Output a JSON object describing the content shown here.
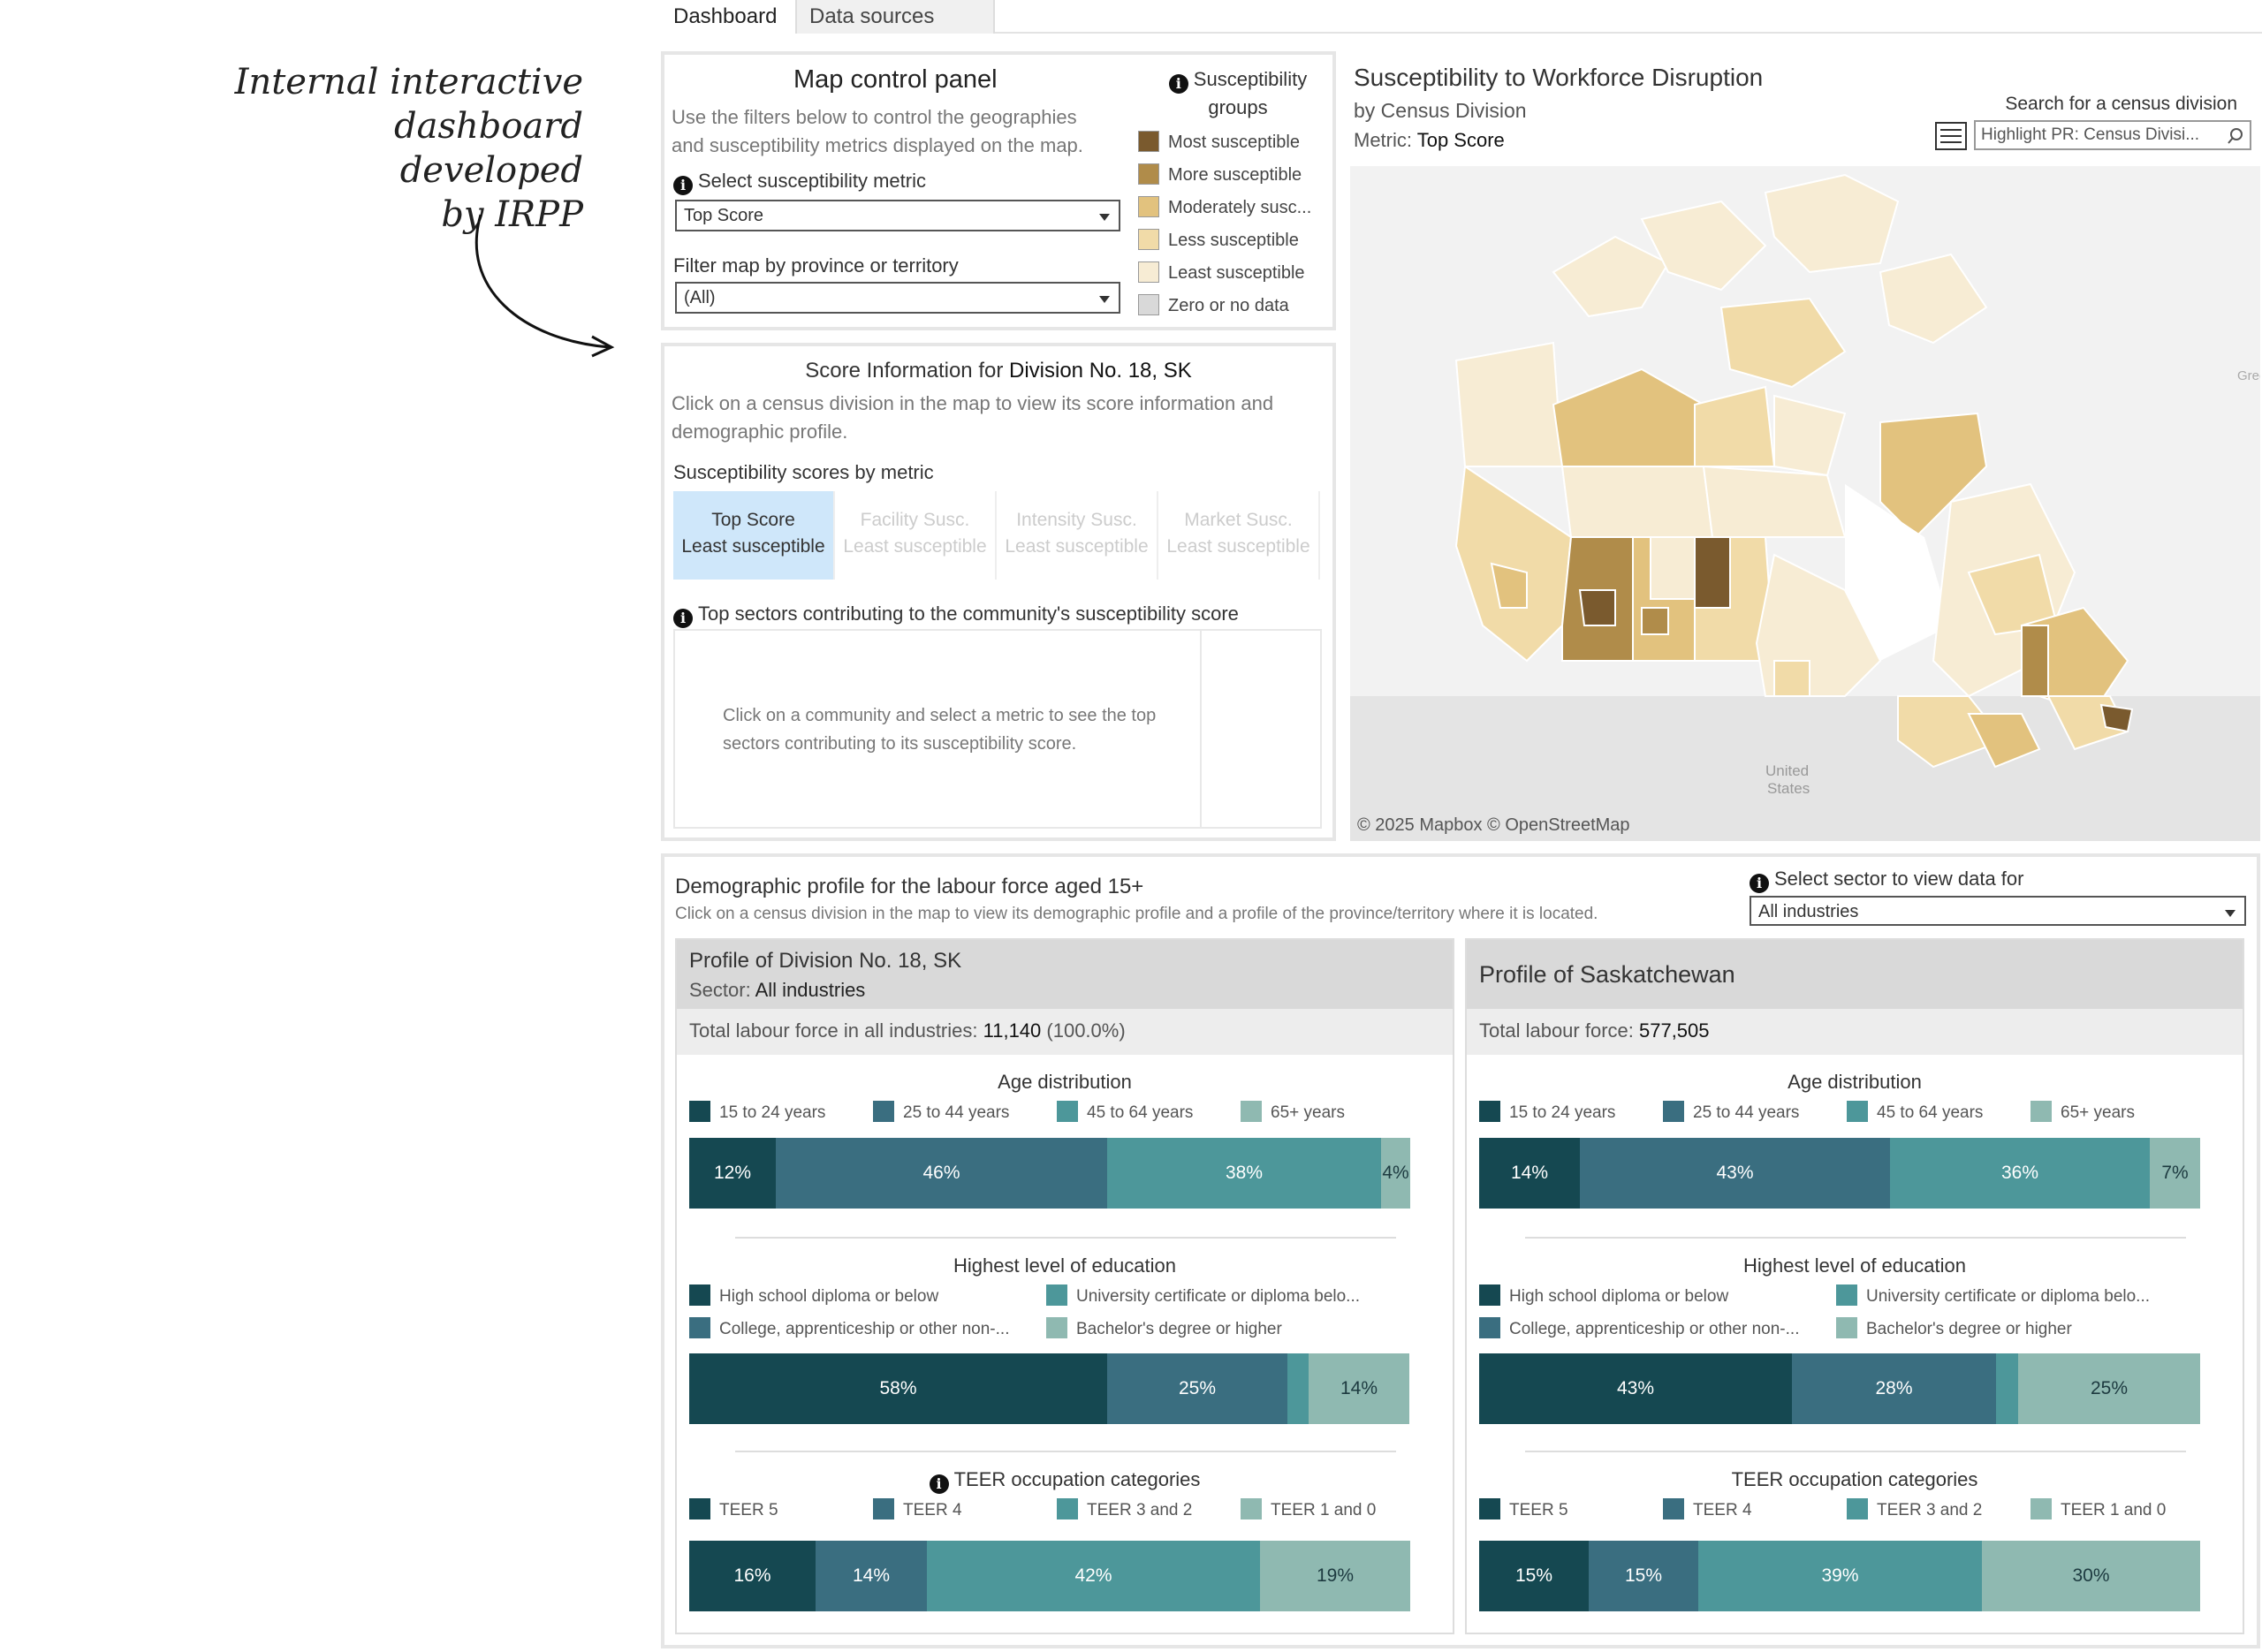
{
  "annotation": {
    "line1": "Internal interactive",
    "line2": "dashboard developed",
    "line3": "by IRPP"
  },
  "tabs": [
    {
      "label": "Dashboard",
      "active": true
    },
    {
      "label": "Data sources",
      "active": false
    }
  ],
  "control": {
    "title": "Map control panel",
    "desc1": "Use the filters below to control the geographies",
    "desc2": "and susceptibility metrics displayed on the map.",
    "metric_label": "Select susceptibility metric",
    "metric_value": "Top Score",
    "filter_label": "Filter map by province or territory",
    "filter_value": "(All)",
    "legend_title1": "Susceptibility",
    "legend_title2": "groups",
    "legend": [
      {
        "label": "Most susceptible",
        "color": "#7a5a2e"
      },
      {
        "label": "More susceptible",
        "color": "#b08c4a"
      },
      {
        "label": "Moderately susc...",
        "color": "#e2c27e"
      },
      {
        "label": "Less susceptible",
        "color": "#f1dba8"
      },
      {
        "label": "Least susceptible",
        "color": "#f7ecd4"
      },
      {
        "label": "Zero or no data",
        "color": "#d9d9d9"
      }
    ]
  },
  "score": {
    "title_prefix": "Score Information for ",
    "title_division": "Division No. 18, SK",
    "desc1": "Click on a census division in the map to view its score information and",
    "desc2": "demographic profile.",
    "scores_label": "Susceptibility scores by metric",
    "metrics": [
      {
        "name": "Top Score",
        "value": "Least susceptible"
      },
      {
        "name": "Facility Susc.",
        "value": "Least susceptible"
      },
      {
        "name": "Intensity Susc.",
        "value": "Least susceptible"
      },
      {
        "name": "Market Susc.",
        "value": "Least susceptible"
      }
    ],
    "sectors_label": "Top sectors contributing to the community's susceptibility score",
    "sectors_hint1": "Click on a community and select a metric to see the top",
    "sectors_hint2": "sectors contributing to its susceptibility score."
  },
  "map": {
    "title": "Susceptibility to Workforce Disruption",
    "subtitle": "by Census Division",
    "metric_prefix": "Metric: ",
    "metric_value": "Top Score",
    "search_label": "Search for a census division",
    "search_placeholder": "Highlight PR: Census Divisi...",
    "attribution": "© 2025 Mapbox  © OpenStreetMap",
    "label_us1": "United",
    "label_us2": "States",
    "label_greenland": "Gree"
  },
  "demo": {
    "title": "Demographic profile for the labour force aged 15+",
    "desc": "Click on a census division in the map to view its demographic profile and a profile of the province/territory where it is located.",
    "sector_label": "Select sector to view data for",
    "sector_value": "All industries",
    "colors": [
      "#154851",
      "#3a6e80",
      "#4d979a",
      "#8fb9b1"
    ],
    "left": {
      "title": "Profile of Division No. 18, SK",
      "sector_prefix": "Sector: ",
      "sector_value": "All industries",
      "total_prefix": "Total labour force in all industries: ",
      "total_value": "11,140",
      "total_suffix": " (100.0%)"
    },
    "right": {
      "title": "Profile of Saskatchewan",
      "total_prefix": "Total labour force: ",
      "total_value": "577,505"
    },
    "age": {
      "title": "Age distribution",
      "legend": [
        "15 to 24 years",
        "25 to 44 years",
        "45 to 64 years",
        "65+ years"
      ]
    },
    "edu": {
      "title": "Highest level of education",
      "legend": [
        "High school diploma or below",
        "College, apprenticeship or other non-...",
        "University certificate or diploma belo...",
        "Bachelor's degree or higher"
      ]
    },
    "teer": {
      "title": "TEER occupation categories",
      "legend": [
        "TEER 5",
        "TEER 4",
        "TEER 3 and 2",
        "TEER 1 and 0"
      ]
    }
  },
  "chart_data": [
    {
      "type": "bar",
      "title": "Age distribution — Division No. 18, SK",
      "categories": [
        "15 to 24 years",
        "25 to 44 years",
        "45 to 64 years",
        "65+ years"
      ],
      "values": [
        12,
        46,
        38,
        4
      ],
      "labels": [
        "12%",
        "46%",
        "38%",
        "4%"
      ]
    },
    {
      "type": "bar",
      "title": "Highest level of education — Division No. 18, SK",
      "categories": [
        "High school diploma or below",
        "College, apprenticeship or other non-university",
        "University certificate or diploma below bachelor",
        "Bachelor's degree or higher"
      ],
      "values": [
        58,
        25,
        3,
        14
      ],
      "labels": [
        "58%",
        "25%",
        "",
        "14%"
      ]
    },
    {
      "type": "bar",
      "title": "TEER occupation categories — Division No. 18, SK",
      "categories": [
        "TEER 5",
        "TEER 4",
        "TEER 3 and 2",
        "TEER 1 and 0"
      ],
      "values": [
        16,
        14,
        42,
        19
      ],
      "labels": [
        "16%",
        "14%",
        "42%",
        "19%"
      ]
    },
    {
      "type": "bar",
      "title": "Age distribution — Saskatchewan",
      "categories": [
        "15 to 24 years",
        "25 to 44 years",
        "45 to 64 years",
        "65+ years"
      ],
      "values": [
        14,
        43,
        36,
        7
      ],
      "labels": [
        "14%",
        "43%",
        "36%",
        "7%"
      ]
    },
    {
      "type": "bar",
      "title": "Highest level of education — Saskatchewan",
      "categories": [
        "High school diploma or below",
        "College, apprenticeship or other non-university",
        "University certificate or diploma below bachelor",
        "Bachelor's degree or higher"
      ],
      "values": [
        43,
        28,
        3,
        25
      ],
      "labels": [
        "43%",
        "28%",
        "",
        "25%"
      ]
    },
    {
      "type": "bar",
      "title": "TEER occupation categories — Saskatchewan",
      "categories": [
        "TEER 5",
        "TEER 4",
        "TEER 3 and 2",
        "TEER 1 and 0"
      ],
      "values": [
        15,
        15,
        39,
        30
      ],
      "labels": [
        "15%",
        "15%",
        "39%",
        "30%"
      ]
    }
  ]
}
